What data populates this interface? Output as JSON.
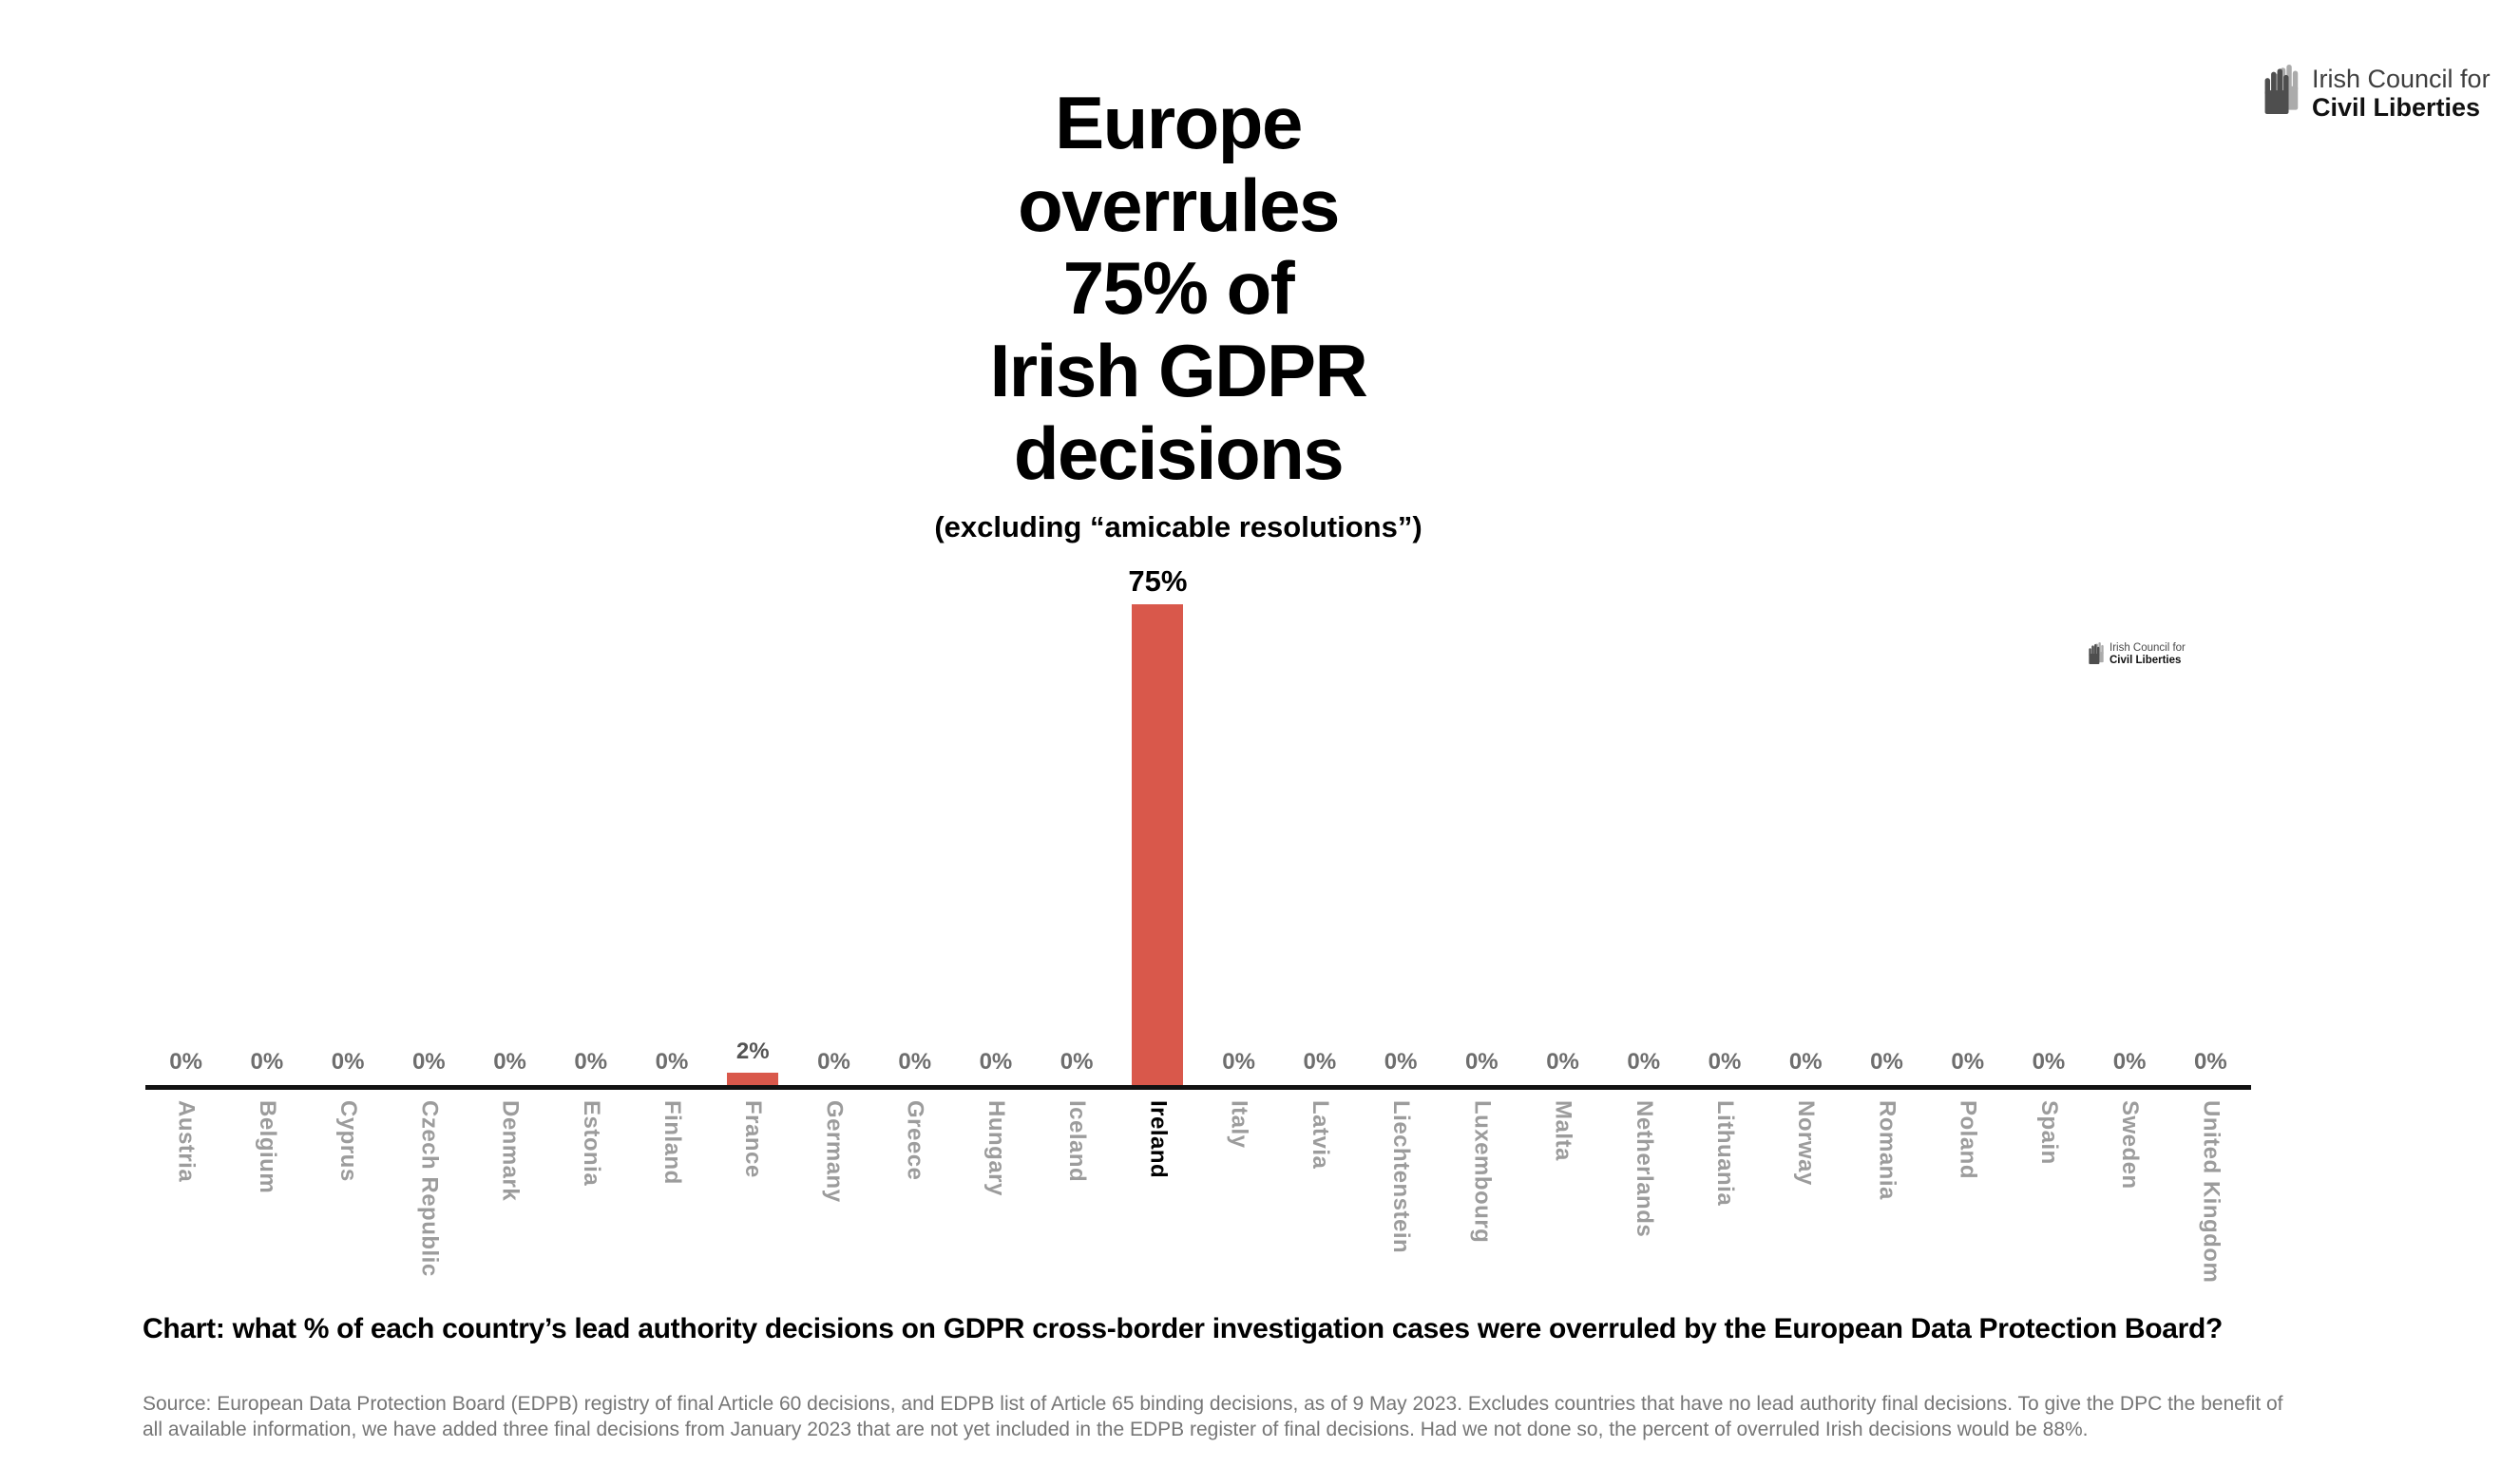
{
  "header": {
    "logo": {
      "line1": "Irish Council for",
      "line2": "Civil Liberties"
    }
  },
  "watermark": {
    "logo": {
      "line1": "Irish Council for",
      "line2": "Civil Liberties"
    }
  },
  "chart_data": {
    "type": "bar",
    "title": "Europe overrules 75% of Irish GDPR decisions",
    "title_lines": [
      "Europe",
      "overrules",
      "75% of",
      "Irish GDPR",
      "decisions"
    ],
    "subtitle": "(excluding “amicable resolutions”)",
    "categories": [
      "Austria",
      "Belgium",
      "Cyprus",
      "Czech Republic",
      "Denmark",
      "Estonia",
      "Finland",
      "France",
      "Germany",
      "Greece",
      "Hungary",
      "Iceland",
      "Ireland",
      "Italy",
      "Latvia",
      "Liechtenstein",
      "Luxembourg",
      "Malta",
      "Netherlands",
      "Lithuania",
      "Norway",
      "Romania",
      "Poland",
      "Spain",
      "Sweden",
      "United Kingdom"
    ],
    "values": [
      0,
      0,
      0,
      0,
      0,
      0,
      0,
      2,
      0,
      0,
      0,
      0,
      75,
      0,
      0,
      0,
      0,
      0,
      0,
      0,
      0,
      0,
      0,
      0,
      0,
      0
    ],
    "value_labels": [
      "0%",
      "0%",
      "0%",
      "0%",
      "0%",
      "0%",
      "0%",
      "2%",
      "0%",
      "0%",
      "0%",
      "0%",
      "75%",
      "0%",
      "0%",
      "0%",
      "0%",
      "0%",
      "0%",
      "0%",
      "0%",
      "0%",
      "0%",
      "0%",
      "0%",
      "0%"
    ],
    "highlight_category": "Ireland",
    "bar_color": "#D9584B",
    "axis_color": "#121212",
    "label_color_default": "#6E6E6E",
    "category_color_default": "#9C9C9C",
    "ylim": [
      0,
      75
    ],
    "grid": "off",
    "legend": "none"
  },
  "footer": {
    "caption": "Chart: what % of each country’s lead authority decisions on GDPR cross-border investigation cases were overruled by the European Data Protection Board?",
    "source_line1": "Source: European Data Protection Board (EDPB) registry of final Article 60 decisions, and EDPB list of Article 65 binding decisions, as of 9 May 2023. Excludes countries that have no lead authority final decisions. To give the DPC the benefit of",
    "source_line2": "all available information, we have added three final decisions from January 2023 that are not yet included in the EDPB register of final decisions. Had we not done so, the percent of overruled Irish decisions would be 88%."
  }
}
